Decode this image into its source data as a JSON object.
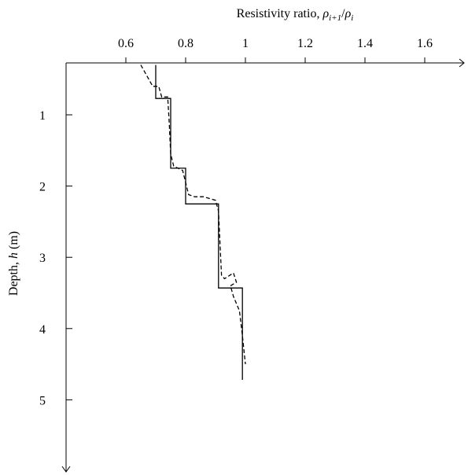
{
  "chart_data": {
    "type": "line",
    "xlabel": "Resistivity ratio, ρi+1/ρi",
    "xlabel_parts": {
      "prefix": "Resistivity ratio, ",
      "rho": "ρ",
      "sub1": "i+1",
      "slash": "/",
      "rho2": "ρ",
      "sub2": "i"
    },
    "ylabel": "Depth, h (m)",
    "ylabel_parts": {
      "prefix": "Depth, ",
      "var": "h",
      "suffix": " (m)"
    },
    "x_axis_position": "top",
    "y_direction": "down",
    "xlim": [
      0.4,
      1.75
    ],
    "ylim": [
      0.3,
      6.0
    ],
    "xticks": [
      0.6,
      0.8,
      1.0,
      1.2,
      1.4,
      1.6
    ],
    "xtick_labels": [
      "0.6",
      "0.8",
      "1",
      "1.2",
      "1.4",
      "1.6"
    ],
    "yticks": [
      1,
      2,
      3,
      4,
      5
    ],
    "ytick_labels": [
      "1",
      "2",
      "3",
      "4",
      "5"
    ],
    "grid": false,
    "series": [
      {
        "style": "solid",
        "x": [
          0.7,
          0.7,
          0.75,
          0.75,
          0.8,
          0.8,
          0.91,
          0.91,
          0.99,
          0.99
        ],
        "y": [
          0.3,
          0.77,
          0.77,
          1.75,
          1.75,
          2.25,
          2.25,
          3.43,
          3.43,
          4.72
        ]
      },
      {
        "style": "dashed",
        "x": [
          0.65,
          0.67,
          0.69,
          0.71,
          0.72,
          0.74,
          0.745,
          0.75,
          0.76,
          0.79,
          0.8,
          0.81,
          0.83,
          0.86,
          0.9,
          0.91,
          0.915,
          0.92,
          0.93,
          0.96,
          0.97,
          0.95,
          0.96,
          0.98,
          0.99,
          1.0
        ],
        "y": [
          0.3,
          0.45,
          0.6,
          0.6,
          0.75,
          0.75,
          1.1,
          1.55,
          1.72,
          1.78,
          1.95,
          2.12,
          2.15,
          2.15,
          2.2,
          2.35,
          2.8,
          3.25,
          3.3,
          3.22,
          3.35,
          3.4,
          3.55,
          3.75,
          4.1,
          4.5
        ]
      }
    ]
  }
}
